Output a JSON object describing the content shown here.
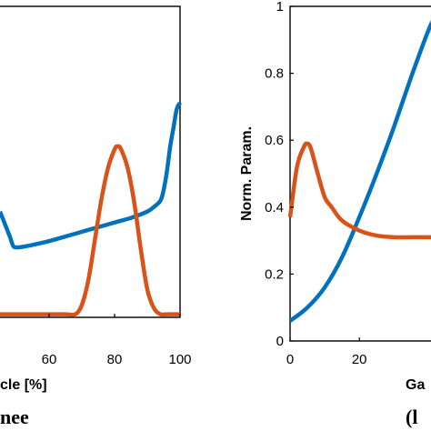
{
  "chart_data": [
    {
      "type": "line",
      "xlabel": "cle [%]",
      "ylabel": "",
      "xlim": [
        45,
        100
      ],
      "ylim": [
        0,
        1
      ],
      "x_ticks": [
        "60",
        "80",
        "100"
      ],
      "caption": "nee",
      "grid": false,
      "series": [
        {
          "color": "#0072BD",
          "x": [
            45,
            46.5,
            48,
            49,
            50,
            52,
            55,
            60,
            65,
            70,
            75,
            80,
            85,
            90,
            92,
            94,
            95,
            96,
            97,
            98,
            99,
            100
          ],
          "values": [
            0.34,
            0.3,
            0.26,
            0.23,
            0.225,
            0.227,
            0.233,
            0.245,
            0.26,
            0.275,
            0.29,
            0.305,
            0.32,
            0.34,
            0.355,
            0.375,
            0.41,
            0.47,
            0.55,
            0.61,
            0.67,
            0.69
          ]
        },
        {
          "color": "#D95319",
          "x": [
            45,
            50,
            55,
            60,
            65,
            68,
            70,
            72,
            74,
            76,
            78,
            80,
            81,
            82,
            84,
            86,
            88,
            90,
            92,
            94,
            96,
            100
          ],
          "values": [
            0.01,
            0.01,
            0.01,
            0.01,
            0.01,
            0.01,
            0.04,
            0.12,
            0.25,
            0.38,
            0.48,
            0.54,
            0.55,
            0.54,
            0.48,
            0.37,
            0.22,
            0.09,
            0.03,
            0.01,
            0.01,
            0.01
          ]
        }
      ]
    },
    {
      "type": "line",
      "xlabel": "Ga",
      "ylabel": "Norm. Param.",
      "xlim": [
        0,
        42
      ],
      "ylim": [
        0,
        1
      ],
      "x_ticks": [
        "0",
        "20"
      ],
      "y_ticks": [
        "0",
        "0.2",
        "0.4",
        "0.6",
        "0.8",
        "1"
      ],
      "caption": "(l",
      "grid": false,
      "series": [
        {
          "color": "#0072BD",
          "x": [
            0,
            5,
            10,
            15,
            20,
            25,
            30,
            35,
            40,
            42
          ],
          "values": [
            0.06,
            0.1,
            0.16,
            0.25,
            0.37,
            0.5,
            0.64,
            0.79,
            0.93,
            0.97
          ]
        },
        {
          "color": "#D95319",
          "x": [
            0,
            2,
            4,
            5,
            6,
            8,
            10,
            12,
            15,
            20,
            25,
            30,
            35,
            40,
            42
          ],
          "values": [
            0.37,
            0.52,
            0.58,
            0.59,
            0.575,
            0.5,
            0.43,
            0.4,
            0.36,
            0.33,
            0.315,
            0.31,
            0.31,
            0.31,
            0.31
          ]
        }
      ]
    }
  ]
}
